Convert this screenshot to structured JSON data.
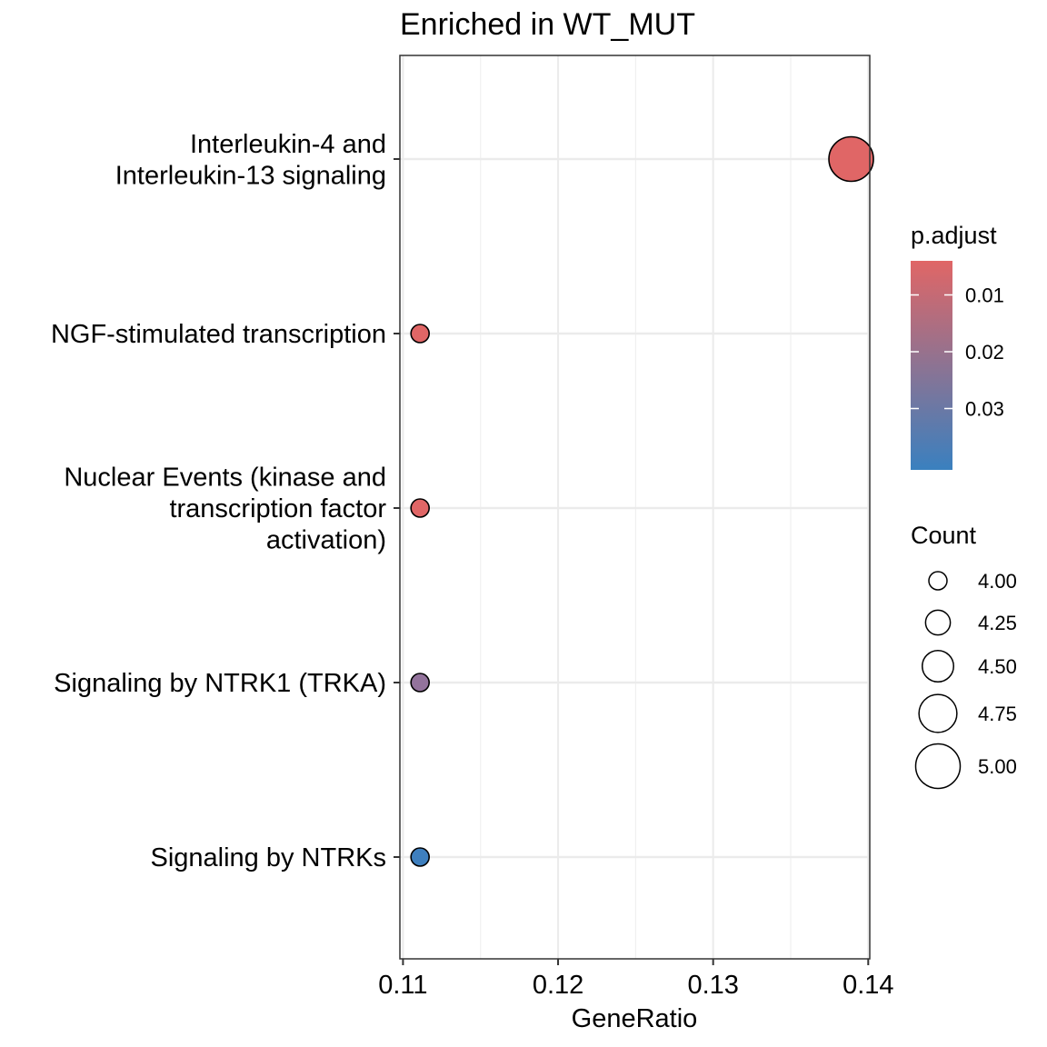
{
  "chart_data": {
    "type": "scatter",
    "title": "Enriched in WT_MUT",
    "xlabel": "GeneRatio",
    "ylabel": "",
    "xlim": [
      0.1098,
      0.1401
    ],
    "x_ticks": [
      "0.11",
      "0.12",
      "0.13",
      "0.14"
    ],
    "x_tick_values": [
      0.11,
      0.12,
      0.13,
      0.14
    ],
    "grid": true,
    "legend_position": "right",
    "categories": [
      [
        "Interleukin-4 and",
        "Interleukin-13 signaling"
      ],
      [
        "NGF-stimulated transcription"
      ],
      [
        "Nuclear Events (kinase and",
        "transcription factor",
        "activation)"
      ],
      [
        "Signaling by NTRK1 (TRKA)"
      ],
      [
        "Signaling by NTRKs"
      ]
    ],
    "points": [
      {
        "x": 0.1389,
        "count": 5,
        "p_adjust": 0.004
      },
      {
        "x": 0.1111,
        "count": 4,
        "p_adjust": 0.004
      },
      {
        "x": 0.1111,
        "count": 4,
        "p_adjust": 0.004
      },
      {
        "x": 0.1111,
        "count": 4,
        "p_adjust": 0.021
      },
      {
        "x": 0.1111,
        "count": 4,
        "p_adjust": 0.04
      }
    ],
    "color_legend": {
      "title": "p.adjust",
      "ticks": [
        "0.01",
        "0.02",
        "0.03"
      ],
      "tick_values": [
        0.01,
        0.02,
        0.03
      ],
      "range": [
        0.004,
        0.0408
      ],
      "low_color": "#E06666",
      "high_color": "#3A80BF"
    },
    "size_legend": {
      "title": "Count",
      "values": [
        4.0,
        4.25,
        4.5,
        4.75,
        5.0
      ],
      "labels": [
        "4.00",
        "4.25",
        "4.50",
        "4.75",
        "5.00"
      ]
    }
  }
}
